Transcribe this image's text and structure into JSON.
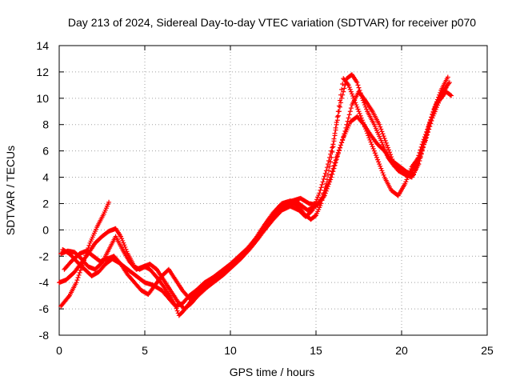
{
  "chart_data": {
    "type": "scatter",
    "title": "Day 213 of 2024, Sidereal Day-to-day VTEC variation (SDTVAR) for receiver p070",
    "xlabel": "GPS time / hours",
    "ylabel": "SDTVAR / TECUs",
    "xlim": [
      0,
      25
    ],
    "ylim": [
      -8,
      14
    ],
    "xticks": [
      0,
      5,
      10,
      15,
      20,
      25
    ],
    "yticks": [
      -8,
      -6,
      -4,
      -2,
      0,
      2,
      4,
      6,
      8,
      10,
      12,
      14
    ],
    "grid": true,
    "marker": "+",
    "color": "#ff0000",
    "series": [
      {
        "x": [
          0.1,
          0.6,
          1.0,
          1.4,
          1.8,
          2.2,
          2.6,
          2.9
        ],
        "y": [
          -5.8,
          -5.0,
          -4.0,
          -2.5,
          -1.0,
          0.2,
          1.2,
          2.1
        ]
      },
      {
        "x": [
          0.0,
          0.4,
          0.9,
          1.3,
          1.7,
          2.1,
          2.5,
          2.9,
          3.3,
          3.6,
          4.0,
          4.4,
          4.7,
          5.0,
          5.3,
          5.7,
          6.1,
          6.5,
          6.8,
          7.0,
          7.3,
          7.7,
          8.1,
          8.5,
          9.0,
          9.5,
          10.0,
          10.5,
          11.0,
          11.5,
          12.0,
          12.5,
          13.0,
          13.5,
          14.0,
          14.3,
          14.7,
          15.0,
          15.3,
          15.6,
          15.9,
          16.2,
          16.5,
          16.8,
          17.1,
          17.4,
          17.7,
          18.0,
          18.4,
          18.8,
          19.2,
          19.6,
          20.0,
          20.4,
          20.8,
          21.2,
          21.6,
          22.0,
          22.4,
          22.8
        ],
        "y": [
          -4.0,
          -3.8,
          -3.2,
          -2.5,
          -1.8,
          -1.0,
          -0.5,
          -0.1,
          0.1,
          -0.5,
          -1.8,
          -2.8,
          -3.0,
          -2.8,
          -3.0,
          -3.6,
          -4.3,
          -5.1,
          -5.8,
          -6.5,
          -6.1,
          -5.4,
          -4.8,
          -4.2,
          -3.8,
          -3.3,
          -2.8,
          -2.3,
          -1.5,
          -0.7,
          0.1,
          1.0,
          1.8,
          2.1,
          1.8,
          1.2,
          0.8,
          1.1,
          2.0,
          3.5,
          5.5,
          8.0,
          10.0,
          11.5,
          11.8,
          11.2,
          10.0,
          9.0,
          8.0,
          6.8,
          5.5,
          4.8,
          4.5,
          4.2,
          4.8,
          6.5,
          8.0,
          9.5,
          10.5,
          11.2
        ]
      },
      {
        "x": [
          0.2,
          0.6,
          1.1,
          1.5,
          1.9,
          2.3,
          2.7,
          3.1,
          3.5,
          4.0,
          4.5,
          5.0,
          5.5,
          6.0,
          6.4,
          6.8,
          7.2,
          7.6,
          8.0,
          8.5,
          9.0,
          9.5,
          10.0,
          10.5,
          11.0,
          11.5,
          12.0,
          12.5,
          13.0,
          13.5,
          14.0,
          14.5,
          15.0,
          15.4,
          15.8,
          16.2,
          16.6,
          17.0,
          17.4,
          17.8,
          18.2,
          18.6,
          19.0,
          19.4,
          19.8,
          20.2,
          20.6,
          21.0,
          21.4,
          21.8,
          22.2,
          22.6
        ],
        "y": [
          -1.5,
          -1.8,
          -2.5,
          -3.0,
          -3.5,
          -3.2,
          -2.6,
          -2.2,
          -2.5,
          -3.0,
          -3.5,
          -4.0,
          -4.2,
          -4.6,
          -5.2,
          -5.8,
          -5.6,
          -5.0,
          -4.6,
          -4.0,
          -3.6,
          -3.1,
          -2.6,
          -2.0,
          -1.4,
          -0.6,
          0.4,
          1.3,
          2.0,
          2.2,
          2.0,
          1.5,
          1.8,
          2.5,
          3.8,
          5.5,
          7.0,
          8.2,
          8.6,
          8.0,
          7.2,
          6.5,
          6.0,
          5.2,
          4.5,
          4.2,
          4.0,
          5.0,
          7.0,
          8.8,
          10.0,
          10.8
        ]
      },
      {
        "x": [
          0.3,
          0.7,
          1.2,
          1.6,
          2.0,
          2.4,
          2.8,
          3.2,
          3.6,
          4.0,
          4.4,
          4.8,
          5.2,
          5.6,
          6.0,
          6.4,
          6.8,
          7.2,
          7.6,
          8.0,
          8.5,
          9.0,
          9.5,
          10.0,
          10.5,
          11.0,
          11.5,
          12.0,
          12.5,
          13.0,
          13.5,
          14.0,
          14.4,
          14.8,
          15.2,
          15.6,
          16.0,
          16.3,
          16.6,
          16.9,
          17.2,
          17.5,
          17.8,
          18.1,
          18.4,
          18.7,
          19.0,
          19.4,
          19.8,
          20.2,
          20.6,
          21.0,
          21.4,
          21.8,
          22.2,
          22.6,
          22.9
        ],
        "y": [
          -3.0,
          -2.4,
          -1.8,
          -1.6,
          -2.0,
          -2.4,
          -2.2,
          -2.0,
          -2.6,
          -3.4,
          -4.0,
          -4.6,
          -4.9,
          -4.2,
          -3.5,
          -3.0,
          -3.8,
          -4.6,
          -5.2,
          -4.8,
          -4.2,
          -3.8,
          -3.4,
          -2.9,
          -2.3,
          -1.6,
          -0.8,
          0.0,
          0.8,
          1.5,
          1.8,
          1.5,
          1.0,
          1.5,
          2.8,
          4.5,
          6.5,
          9.0,
          11.5,
          11.0,
          10.0,
          9.0,
          8.0,
          7.0,
          6.0,
          5.0,
          4.0,
          3.0,
          2.6,
          3.5,
          4.8,
          5.5,
          6.8,
          8.5,
          9.8,
          10.5,
          10.2
        ]
      },
      {
        "x": [
          0.1,
          0.5,
          0.9,
          1.3,
          1.7,
          2.1,
          2.5,
          2.9,
          3.3,
          3.7,
          4.1,
          4.5,
          4.9,
          5.3,
          5.7,
          6.1,
          6.5,
          6.9,
          7.3,
          7.7,
          8.1,
          8.6,
          9.1,
          9.6,
          10.1,
          10.6,
          11.1,
          11.6,
          12.1,
          12.6,
          13.1,
          13.6,
          14.1,
          14.6,
          15.1,
          15.5,
          15.9,
          16.3,
          16.7,
          17.1,
          17.5,
          17.9,
          18.3,
          18.7,
          19.1,
          19.5,
          19.9,
          20.3,
          20.7,
          21.1,
          21.5,
          21.9,
          22.3,
          22.7
        ],
        "y": [
          -1.8,
          -1.6,
          -1.7,
          -2.2,
          -2.8,
          -3.0,
          -2.5,
          -1.5,
          -0.5,
          -1.5,
          -2.4,
          -3.0,
          -2.8,
          -2.6,
          -3.0,
          -3.8,
          -4.6,
          -5.4,
          -6.0,
          -5.6,
          -5.0,
          -4.4,
          -3.9,
          -3.4,
          -2.8,
          -2.2,
          -1.5,
          -0.7,
          0.2,
          1.0,
          1.7,
          2.2,
          2.4,
          2.0,
          1.9,
          2.6,
          4.0,
          5.8,
          7.5,
          9.5,
          10.5,
          9.8,
          9.0,
          8.0,
          6.6,
          5.2,
          4.8,
          4.4,
          4.2,
          5.6,
          7.4,
          9.2,
          10.6,
          11.6
        ]
      }
    ]
  }
}
